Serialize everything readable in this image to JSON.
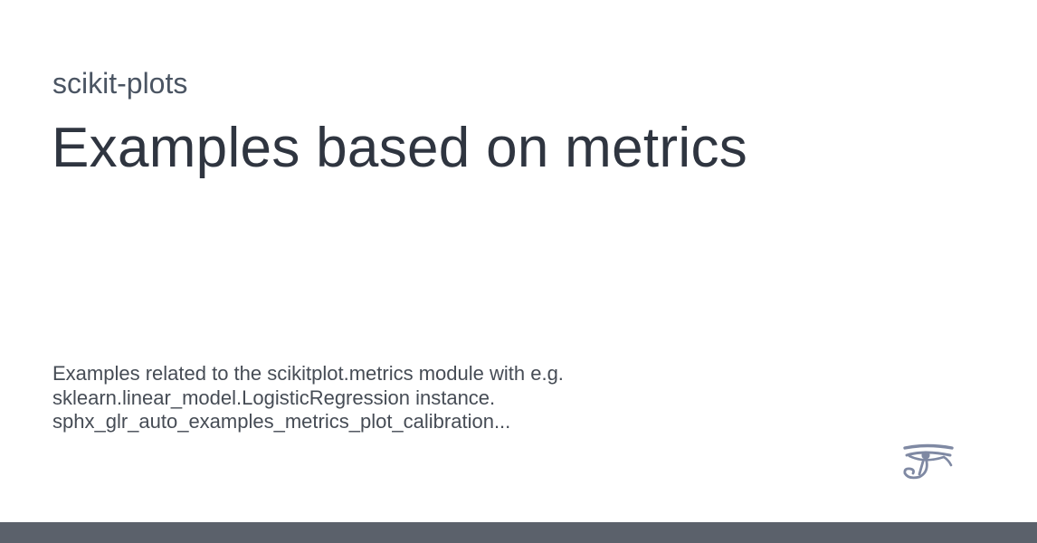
{
  "site": {
    "name": "scikit-plots"
  },
  "page": {
    "title": "Examples based on metrics"
  },
  "description": {
    "lines": [
      "Examples related to the scikitplot.metrics module with e.g.",
      "sklearn.linear_model.LogisticRegression instance.",
      "sphx_glr_auto_examples_metrics_plot_calibration..."
    ]
  },
  "logo": {
    "icon": "eye-of-horus-icon",
    "color": "#7f89a3"
  },
  "footer": {
    "color": "#5b616b"
  }
}
